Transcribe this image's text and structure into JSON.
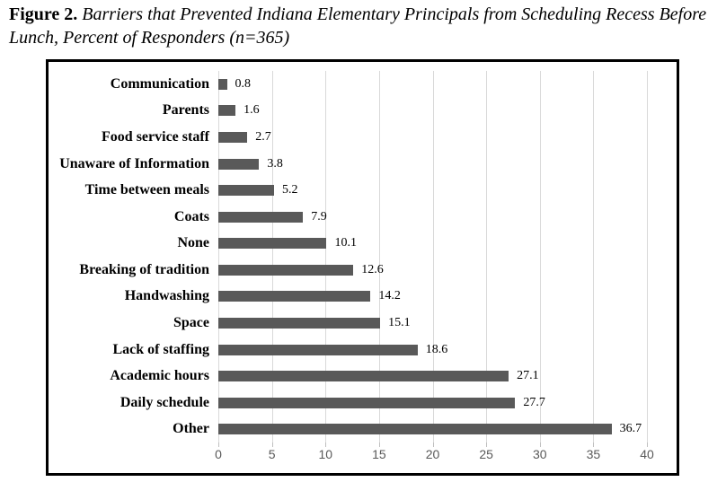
{
  "title": {
    "label": "Figure 2.",
    "text": " Barriers that Prevented Indiana Elementary Principals from Scheduling Recess Before Lunch, Percent of Responders (n=365)"
  },
  "chart_data": {
    "type": "bar",
    "orientation": "horizontal",
    "title": "Figure 2. Barriers that Prevented Indiana Elementary Principals from Scheduling Recess Before Lunch, Percent of Responders (n=365)",
    "xlabel": "",
    "ylabel": "",
    "categories": [
      "Communication",
      "Parents",
      "Food service staff",
      "Unaware of Information",
      "Time between meals",
      "Coats",
      "None",
      "Breaking of tradition",
      "Handwashing",
      "Space",
      "Lack of staffing",
      "Academic hours",
      "Daily schedule",
      "Other"
    ],
    "values": [
      0.8,
      1.6,
      2.7,
      3.8,
      5.2,
      7.9,
      10.1,
      12.6,
      14.2,
      15.1,
      18.6,
      27.1,
      27.7,
      36.7
    ],
    "x_ticks": [
      0,
      5,
      10,
      15,
      20,
      25,
      30,
      35,
      40
    ],
    "xlim": [
      0,
      40
    ],
    "grid": true,
    "legend": false,
    "data_labels": true,
    "colors": {
      "bar": "#595959",
      "gridline": "#d9d9d9",
      "tick_mark": "#bfbfbf",
      "tick_label": "#595959",
      "frame_border": "#000000",
      "value_label": "#000000",
      "category_label": "#000000"
    }
  }
}
